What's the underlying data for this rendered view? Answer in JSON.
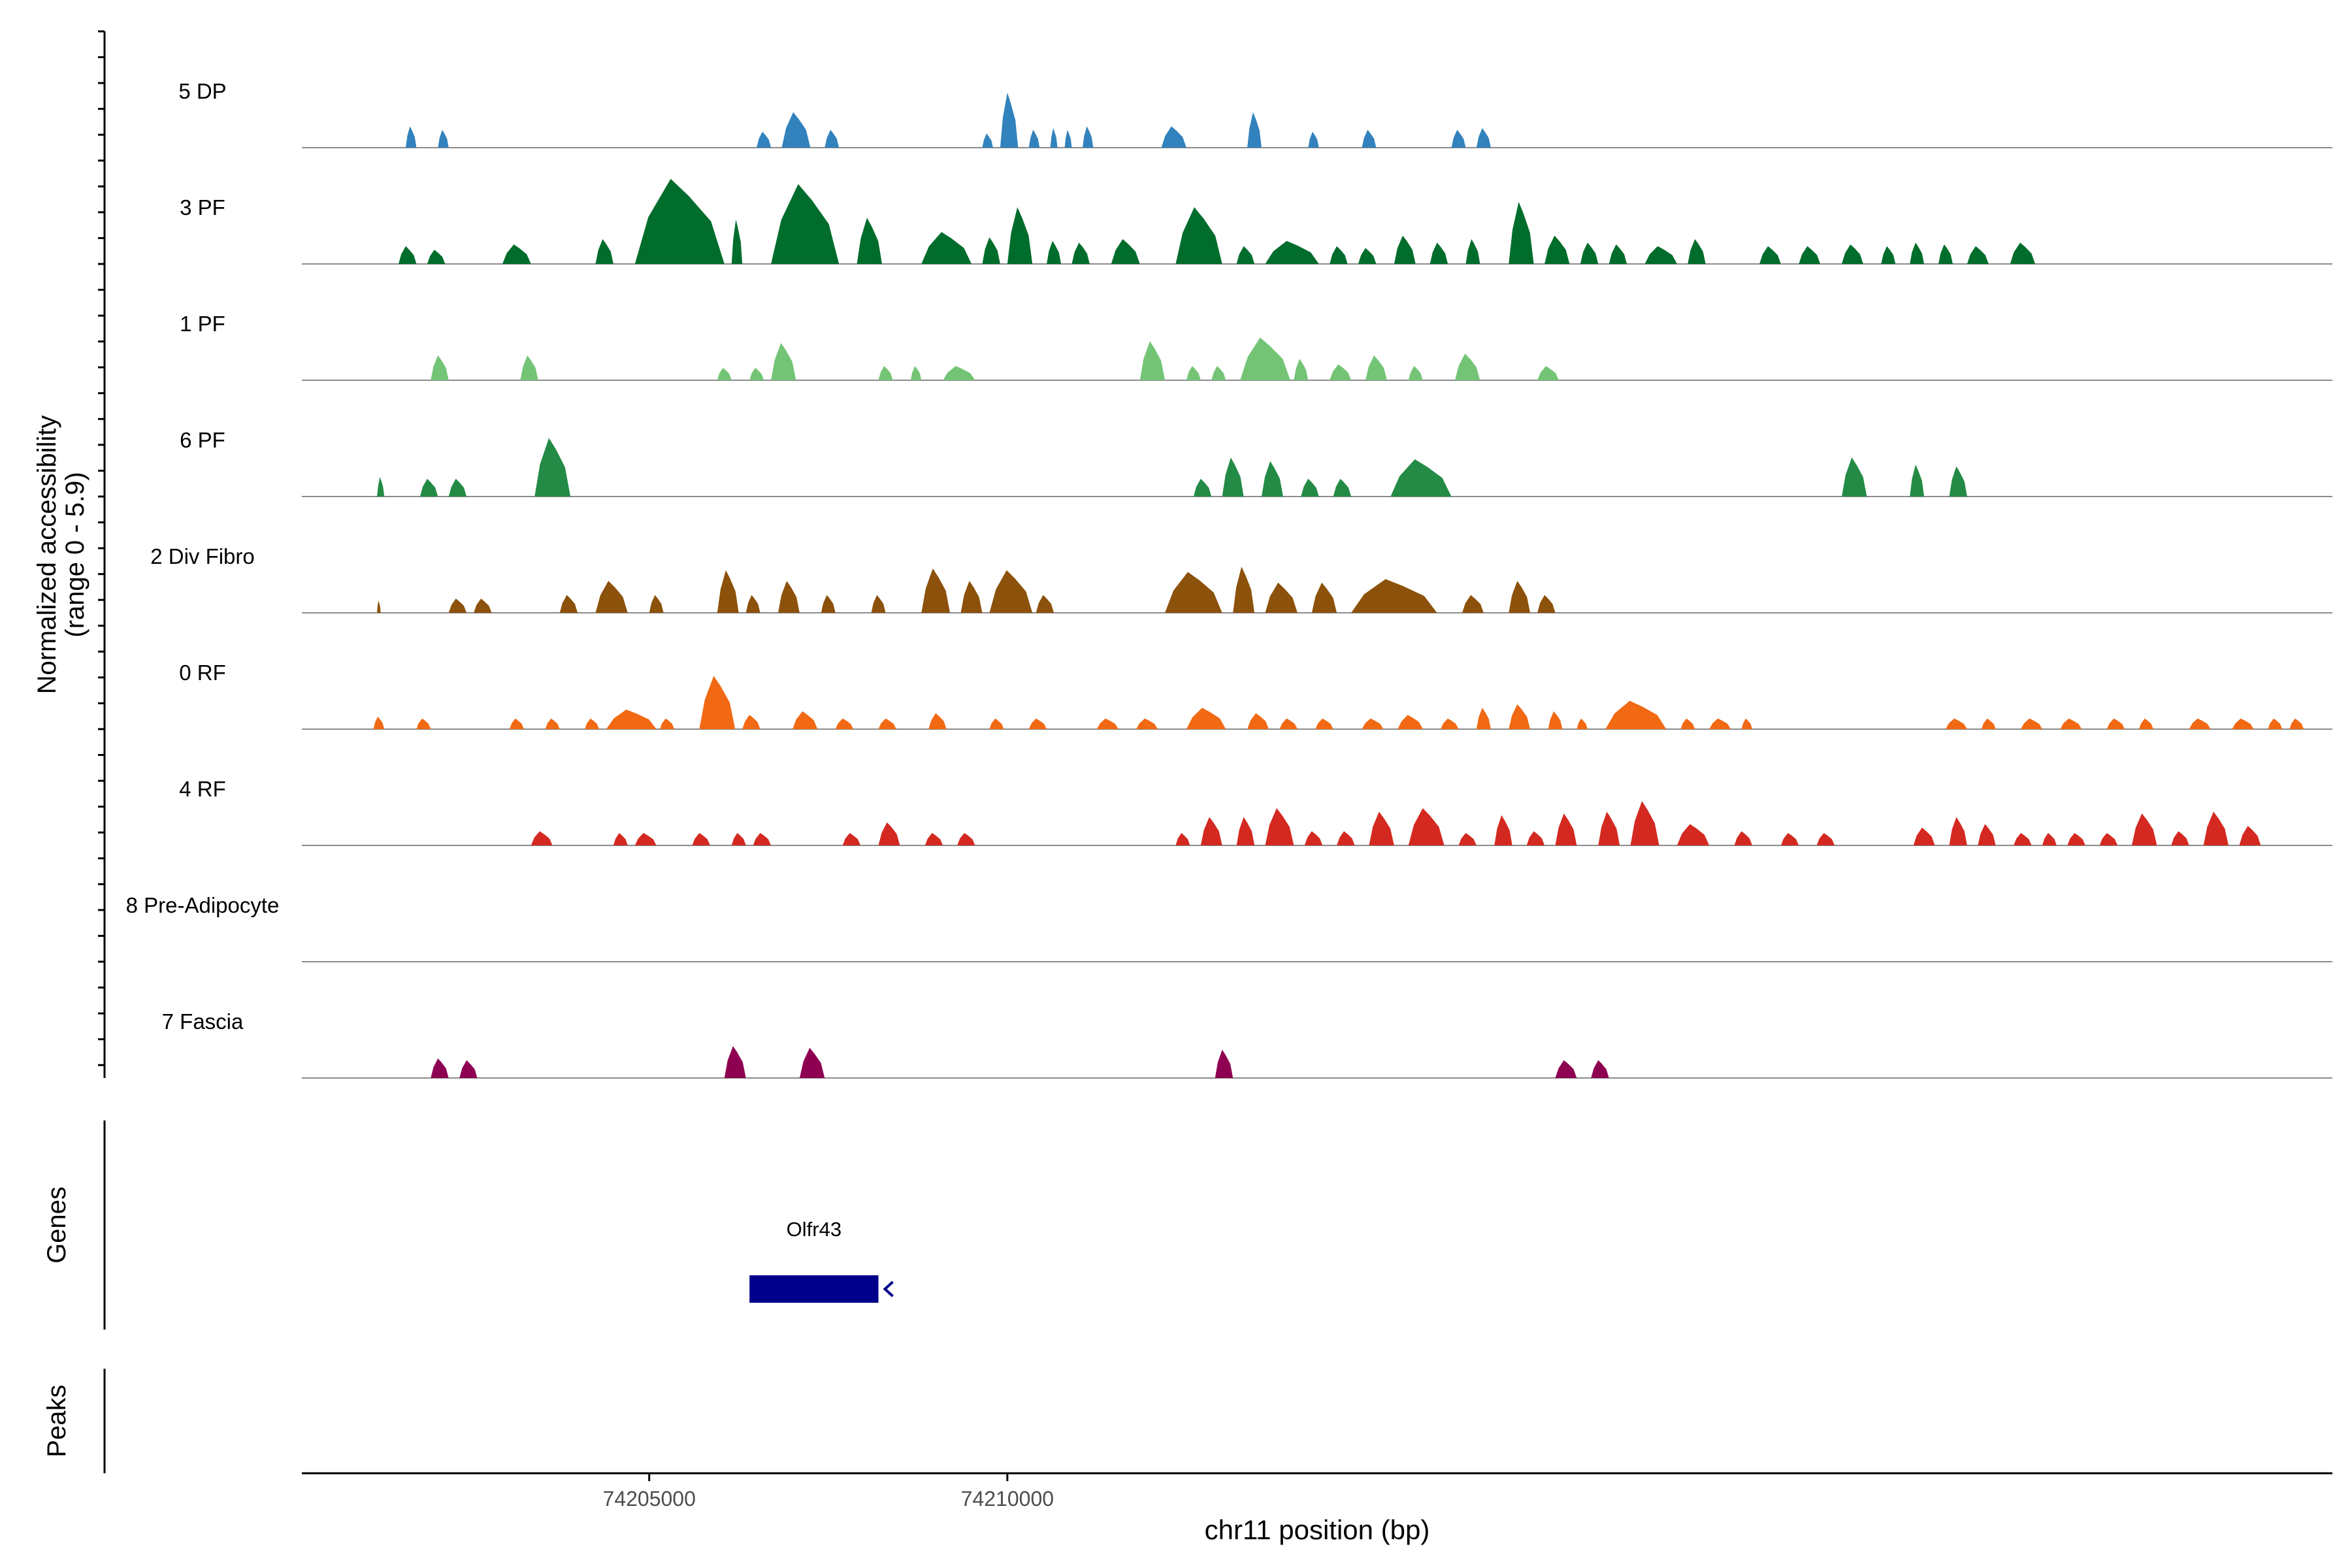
{
  "chart_data": {
    "type": "area",
    "title": "",
    "ylabel_line1": "Normalized accessibility",
    "ylabel_line2": "(range 0 - 5.9)",
    "xlabel": "chr11 position (bp)",
    "xlim": [
      74200150,
      74228500
    ],
    "ylim": [
      0,
      5.9
    ],
    "x_ticks": [
      {
        "value": 74205000,
        "label": "74205000"
      },
      {
        "value": 74210000,
        "label": "74210000"
      }
    ],
    "tracks": [
      {
        "name": "5 DP",
        "color": "#3182BD",
        "peaks": [
          [
            74201600,
            74201750,
            1.2
          ],
          [
            74202050,
            74202200,
            1.0
          ],
          [
            74206500,
            74206700,
            0.9
          ],
          [
            74206850,
            74207250,
            2.0
          ],
          [
            74207450,
            74207650,
            1.0
          ],
          [
            74209650,
            74209800,
            0.8
          ],
          [
            74209900,
            74210150,
            3.1
          ],
          [
            74210300,
            74210450,
            1.0
          ],
          [
            74210600,
            74210700,
            1.1
          ],
          [
            74210800,
            74210900,
            1.0
          ],
          [
            74211050,
            74211200,
            1.2
          ],
          [
            74212150,
            74212500,
            1.2
          ],
          [
            74213350,
            74213550,
            2.0
          ],
          [
            74214200,
            74214350,
            0.9
          ],
          [
            74214950,
            74215150,
            1.0
          ],
          [
            74216200,
            74216400,
            1.0
          ],
          [
            74216550,
            74216750,
            1.1
          ]
        ]
      },
      {
        "name": "3 PF",
        "color": "#006D2C",
        "peaks": [
          [
            74201500,
            74201750,
            1.0
          ],
          [
            74201900,
            74202150,
            0.8
          ],
          [
            74202950,
            74203350,
            1.1
          ],
          [
            74204250,
            74204500,
            1.4
          ],
          [
            74204800,
            74206050,
            4.8
          ],
          [
            74206150,
            74206300,
            2.5
          ],
          [
            74206700,
            74207650,
            4.5
          ],
          [
            74207900,
            74208250,
            2.6
          ],
          [
            74208800,
            74209500,
            1.8
          ],
          [
            74209650,
            74209900,
            1.5
          ],
          [
            74210000,
            74210350,
            3.2
          ],
          [
            74210550,
            74210750,
            1.3
          ],
          [
            74210900,
            74211150,
            1.2
          ],
          [
            74211450,
            74211850,
            1.4
          ],
          [
            74212350,
            74213000,
            3.2
          ],
          [
            74213200,
            74213450,
            1.0
          ],
          [
            74213600,
            74214350,
            1.3
          ],
          [
            74214500,
            74214750,
            1.0
          ],
          [
            74214900,
            74215150,
            0.9
          ],
          [
            74215400,
            74215700,
            1.6
          ],
          [
            74215900,
            74216150,
            1.2
          ],
          [
            74216400,
            74216600,
            1.4
          ],
          [
            74217000,
            74217350,
            3.5
          ],
          [
            74217500,
            74217850,
            1.6
          ],
          [
            74218000,
            74218250,
            1.2
          ],
          [
            74218400,
            74218650,
            1.1
          ],
          [
            74218900,
            74219350,
            1.0
          ],
          [
            74219500,
            74219750,
            1.4
          ],
          [
            74220500,
            74220800,
            1.0
          ],
          [
            74221050,
            74221350,
            1.0
          ],
          [
            74221650,
            74221950,
            1.1
          ],
          [
            74222200,
            74222400,
            1.0
          ],
          [
            74222600,
            74222800,
            1.2
          ],
          [
            74223000,
            74223200,
            1.1
          ],
          [
            74223400,
            74223700,
            1.0
          ],
          [
            74224000,
            74224350,
            1.2
          ]
        ]
      },
      {
        "name": "1 PF",
        "color": "#74C476",
        "peaks": [
          [
            74201950,
            74202200,
            1.4
          ],
          [
            74203200,
            74203450,
            1.4
          ],
          [
            74205950,
            74206150,
            0.7
          ],
          [
            74206400,
            74206600,
            0.7
          ],
          [
            74206700,
            74207050,
            2.1
          ],
          [
            74208200,
            74208400,
            0.8
          ],
          [
            74208650,
            74208800,
            0.8
          ],
          [
            74209100,
            74209550,
            0.8
          ],
          [
            74211850,
            74212200,
            2.2
          ],
          [
            74212500,
            74212700,
            0.8
          ],
          [
            74212850,
            74213050,
            0.8
          ],
          [
            74213250,
            74213950,
            2.4
          ],
          [
            74214000,
            74214200,
            1.2
          ],
          [
            74214500,
            74214800,
            0.9
          ],
          [
            74215000,
            74215300,
            1.4
          ],
          [
            74215600,
            74215800,
            0.8
          ],
          [
            74216250,
            74216600,
            1.5
          ],
          [
            74217400,
            74217700,
            0.8
          ]
        ]
      },
      {
        "name": "6 PF",
        "color": "#238B45",
        "peaks": [
          [
            74201200,
            74201300,
            1.1
          ],
          [
            74201800,
            74202050,
            1.0
          ],
          [
            74202200,
            74202450,
            1.0
          ],
          [
            74203400,
            74203900,
            3.3
          ],
          [
            74212600,
            74212850,
            1.0
          ],
          [
            74213000,
            74213300,
            2.2
          ],
          [
            74213550,
            74213850,
            2.0
          ],
          [
            74214100,
            74214350,
            1.0
          ],
          [
            74214550,
            74214800,
            1.0
          ],
          [
            74215350,
            74216200,
            2.1
          ],
          [
            74221650,
            74222000,
            2.2
          ],
          [
            74222600,
            74222800,
            1.8
          ],
          [
            74223150,
            74223400,
            1.7
          ]
        ]
      },
      {
        "name": "2 Div Fibro",
        "color": "#8C510A",
        "peaks": [
          [
            74201200,
            74201250,
            0.7
          ],
          [
            74202200,
            74202450,
            0.8
          ],
          [
            74202550,
            74202800,
            0.8
          ],
          [
            74203750,
            74204000,
            1.0
          ],
          [
            74204250,
            74204700,
            1.8
          ],
          [
            74205000,
            74205200,
            1.0
          ],
          [
            74205950,
            74206250,
            2.4
          ],
          [
            74206350,
            74206550,
            1.0
          ],
          [
            74206800,
            74207100,
            1.8
          ],
          [
            74207400,
            74207600,
            1.0
          ],
          [
            74208100,
            74208300,
            1.0
          ],
          [
            74208800,
            74209200,
            2.5
          ],
          [
            74209350,
            74209650,
            1.8
          ],
          [
            74209750,
            74210350,
            2.4
          ],
          [
            74210400,
            74210650,
            1.0
          ],
          [
            74212200,
            74213000,
            2.3
          ],
          [
            74213150,
            74213450,
            2.6
          ],
          [
            74213600,
            74214050,
            1.7
          ],
          [
            74214250,
            74214600,
            1.7
          ],
          [
            74214800,
            74216000,
            1.9
          ],
          [
            74216350,
            74216650,
            1.0
          ],
          [
            74217000,
            74217300,
            1.8
          ],
          [
            74217400,
            74217650,
            1.0
          ]
        ]
      },
      {
        "name": "0 RF",
        "color": "#F16913",
        "peaks": [
          [
            74201150,
            74201300,
            0.7
          ],
          [
            74201750,
            74201950,
            0.6
          ],
          [
            74203050,
            74203250,
            0.6
          ],
          [
            74203550,
            74203750,
            0.6
          ],
          [
            74204100,
            74204300,
            0.6
          ],
          [
            74204400,
            74205100,
            1.1
          ],
          [
            74205150,
            74205350,
            0.6
          ],
          [
            74205700,
            74206200,
            3.0
          ],
          [
            74206300,
            74206550,
            0.8
          ],
          [
            74207000,
            74207350,
            1.0
          ],
          [
            74207600,
            74207850,
            0.6
          ],
          [
            74208200,
            74208450,
            0.6
          ],
          [
            74208900,
            74209150,
            0.9
          ],
          [
            74209750,
            74209950,
            0.6
          ],
          [
            74210300,
            74210550,
            0.6
          ],
          [
            74211250,
            74211550,
            0.6
          ],
          [
            74211800,
            74212100,
            0.6
          ],
          [
            74212500,
            74213050,
            1.2
          ],
          [
            74213350,
            74213650,
            0.9
          ],
          [
            74213800,
            74214050,
            0.6
          ],
          [
            74214300,
            74214550,
            0.6
          ],
          [
            74214950,
            74215250,
            0.6
          ],
          [
            74215450,
            74215800,
            0.8
          ],
          [
            74216050,
            74216300,
            0.6
          ],
          [
            74216550,
            74216750,
            1.2
          ],
          [
            74217000,
            74217300,
            1.4
          ],
          [
            74217550,
            74217750,
            1.0
          ],
          [
            74217950,
            74218100,
            0.6
          ],
          [
            74218350,
            74219200,
            1.6
          ],
          [
            74219400,
            74219600,
            0.6
          ],
          [
            74219800,
            74220100,
            0.6
          ],
          [
            74220250,
            74220400,
            0.6
          ],
          [
            74223100,
            74223400,
            0.6
          ],
          [
            74223600,
            74223800,
            0.6
          ],
          [
            74224150,
            74224450,
            0.6
          ],
          [
            74224700,
            74225000,
            0.6
          ],
          [
            74225350,
            74225600,
            0.6
          ],
          [
            74225800,
            74226000,
            0.6
          ],
          [
            74226500,
            74226800,
            0.6
          ],
          [
            74227100,
            74227400,
            0.6
          ],
          [
            74227600,
            74227800,
            0.6
          ],
          [
            74227900,
            74228100,
            0.6
          ]
        ]
      },
      {
        "name": "4 RF",
        "color": "#D42920",
        "peaks": [
          [
            74203350,
            74203650,
            0.8
          ],
          [
            74204500,
            74204700,
            0.7
          ],
          [
            74204800,
            74205100,
            0.7
          ],
          [
            74205600,
            74205850,
            0.7
          ],
          [
            74206150,
            74206350,
            0.7
          ],
          [
            74206450,
            74206700,
            0.7
          ],
          [
            74207700,
            74207950,
            0.7
          ],
          [
            74208200,
            74208500,
            1.3
          ],
          [
            74208850,
            74209100,
            0.7
          ],
          [
            74209300,
            74209550,
            0.7
          ],
          [
            74212350,
            74212550,
            0.7
          ],
          [
            74212700,
            74213000,
            1.6
          ],
          [
            74213200,
            74213450,
            1.6
          ],
          [
            74213600,
            74214000,
            2.1
          ],
          [
            74214150,
            74214400,
            0.8
          ],
          [
            74214600,
            74214850,
            0.8
          ],
          [
            74215050,
            74215400,
            1.9
          ],
          [
            74215600,
            74216100,
            2.1
          ],
          [
            74216300,
            74216550,
            0.7
          ],
          [
            74216800,
            74217050,
            1.7
          ],
          [
            74217250,
            74217500,
            0.8
          ],
          [
            74217650,
            74217950,
            1.8
          ],
          [
            74218250,
            74218550,
            1.9
          ],
          [
            74218700,
            74219100,
            2.5
          ],
          [
            74219350,
            74219800,
            1.2
          ],
          [
            74220150,
            74220400,
            0.8
          ],
          [
            74220800,
            74221050,
            0.7
          ],
          [
            74221300,
            74221550,
            0.7
          ],
          [
            74222650,
            74222950,
            1.0
          ],
          [
            74223150,
            74223400,
            1.6
          ],
          [
            74223550,
            74223800,
            1.2
          ],
          [
            74224050,
            74224300,
            0.7
          ],
          [
            74224450,
            74224650,
            0.7
          ],
          [
            74224800,
            74225050,
            0.7
          ],
          [
            74225250,
            74225500,
            0.7
          ],
          [
            74225700,
            74226050,
            1.8
          ],
          [
            74226250,
            74226500,
            0.8
          ],
          [
            74226700,
            74227050,
            1.9
          ],
          [
            74227200,
            74227500,
            1.1
          ]
        ]
      },
      {
        "name": "8 Pre-Adipocyte",
        "color": "#7F2704",
        "peaks": []
      },
      {
        "name": "7 Fascia",
        "color": "#8E0152",
        "peaks": [
          [
            74201950,
            74202200,
            1.1
          ],
          [
            74202350,
            74202600,
            1.0
          ],
          [
            74206050,
            74206350,
            1.8
          ],
          [
            74207100,
            74207450,
            1.7
          ],
          [
            74212900,
            74213150,
            1.6
          ],
          [
            74217650,
            74217950,
            1.0
          ],
          [
            74218150,
            74218400,
            1.0
          ]
        ]
      }
    ],
    "genes": [
      {
        "name": "Olfr43",
        "start": 74206400,
        "end": 74208200,
        "strand": "-",
        "color": "#00008B"
      }
    ],
    "gene_track_label": "Genes",
    "peak_track_label": "Peaks"
  }
}
